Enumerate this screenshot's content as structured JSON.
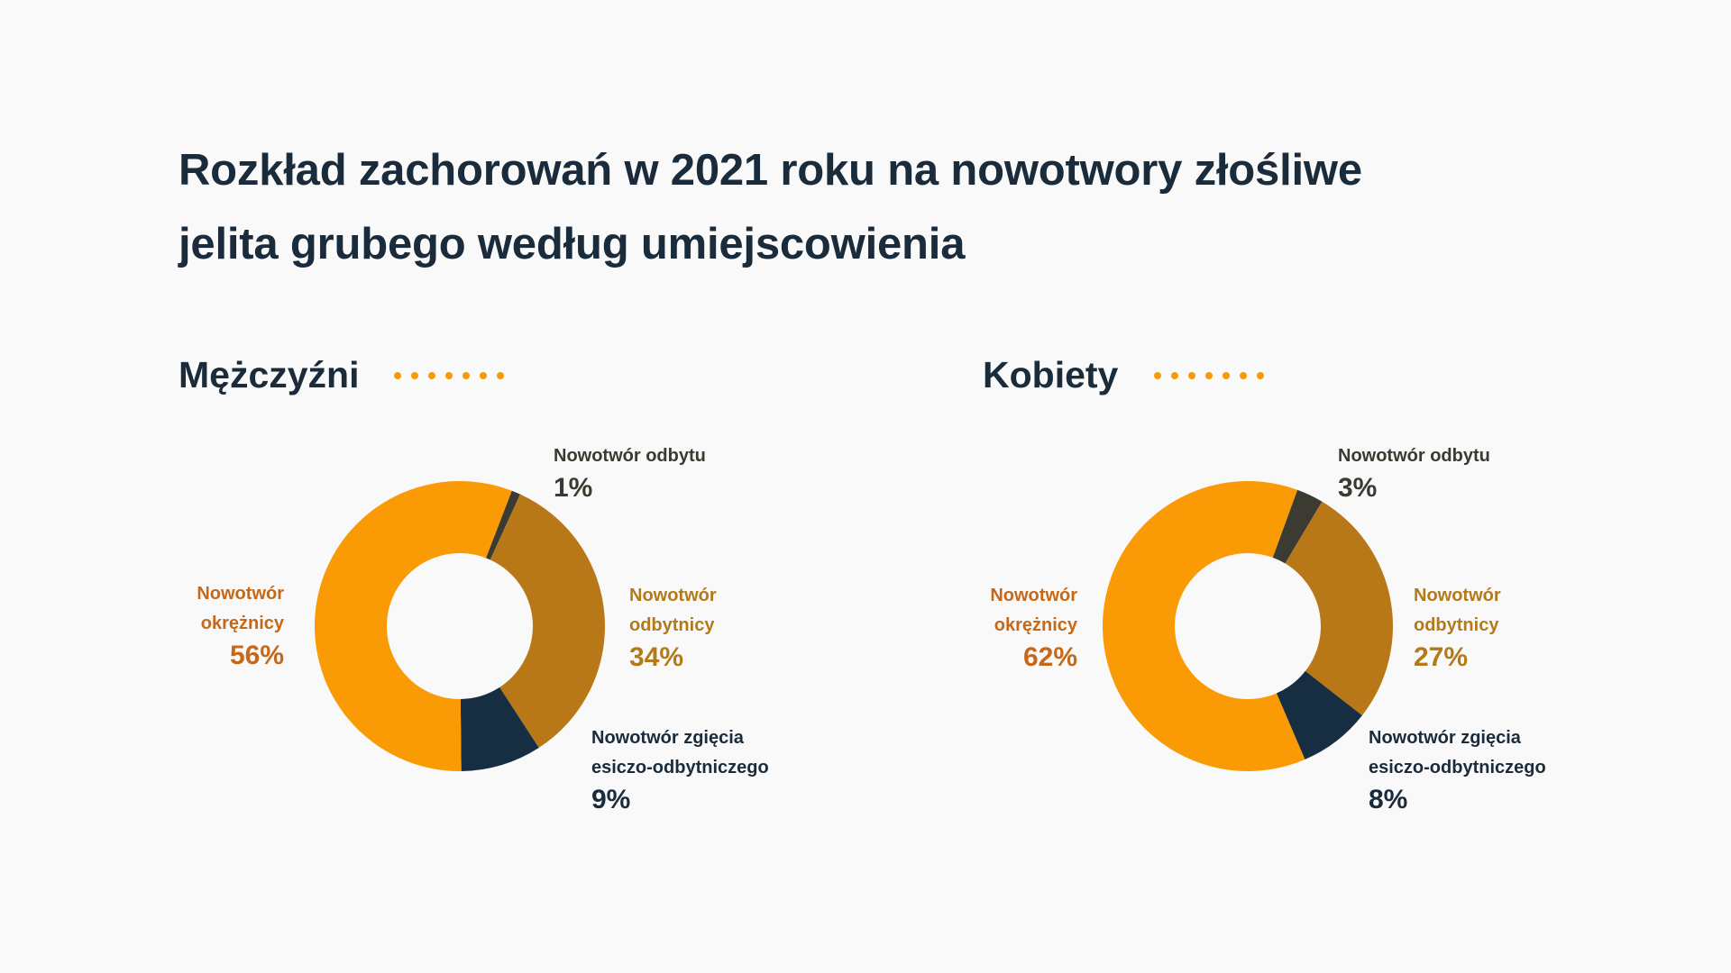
{
  "title_lines": [
    "Rozkład zachorowań w 2021 roku na nowotwory złośliwe",
    "jelita grubego według umiejscowienia"
  ],
  "colors": {
    "background": "#f9f9f9",
    "title": "#1a2b3c",
    "accent_dots": "#f79a05",
    "okreznicy": "#fa9a05",
    "odbytnicy": "#b87817",
    "odbytu": "#3b3b33",
    "zgiecia": "#162d42"
  },
  "chart_data": [
    {
      "type": "pie",
      "title": "Mężczyźni",
      "slices": [
        {
          "label": "Nowotwór odbytu",
          "value": 1,
          "display": "1%",
          "color": "#3b3b33"
        },
        {
          "label": "Nowotwór odbytnicy",
          "value": 34,
          "display": "34%",
          "color": "#b87817"
        },
        {
          "label": "Nowotwór zgięcia esiczo-odbytniczego",
          "value": 9,
          "display": "9%",
          "color": "#162d42"
        },
        {
          "label": "Nowotwór okrężnicy",
          "value": 56,
          "display": "56%",
          "color": "#fa9a05"
        }
      ]
    },
    {
      "type": "pie",
      "title": "Kobiety",
      "slices": [
        {
          "label": "Nowotwór odbytu",
          "value": 3,
          "display": "3%",
          "color": "#3b3b33"
        },
        {
          "label": "Nowotwór odbytnicy",
          "value": 27,
          "display": "27%",
          "color": "#b87817"
        },
        {
          "label": "Nowotwór zgięcia esiczo-odbytniczego",
          "value": 8,
          "display": "8%",
          "color": "#162d42"
        },
        {
          "label": "Nowotwór okrężnicy",
          "value": 62,
          "display": "62%",
          "color": "#fa9a05"
        }
      ]
    }
  ],
  "labels": {
    "men": {
      "odbytu_name": "Nowotwór odbytu",
      "odbytnicy_line1": "Nowotwór",
      "odbytnicy_line2": "odbytnicy",
      "zgiecia_line1": "Nowotwór zgięcia",
      "zgiecia_line2": "esiczo-odbytniczego",
      "okreznicy_line1": "Nowotwór",
      "okreznicy_line2": "okrężnicy"
    },
    "women": {
      "odbytu_name": "Nowotwór odbytu",
      "odbytnicy_line1": "Nowotwór",
      "odbytnicy_line2": "odbytnicy",
      "zgiecia_line1": "Nowotwór zgięcia",
      "zgiecia_line2": "esiczo-odbytniczego",
      "okreznicy_line1": "Nowotwór",
      "okreznicy_line2": "okrężnicy"
    }
  }
}
